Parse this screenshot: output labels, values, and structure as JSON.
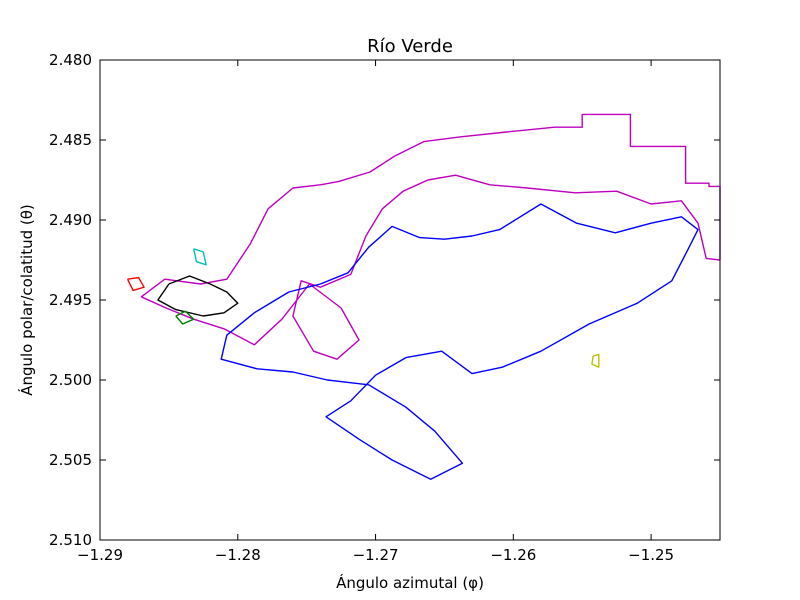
{
  "chart_data": {
    "type": "line",
    "title": "Río Verde",
    "xlabel": "Ángulo azimutal (φ)",
    "ylabel": "Ángulo polar/colatitud (θ)",
    "xlim": [
      -1.29,
      -1.245
    ],
    "ylim": [
      2.51,
      2.48
    ],
    "y_inverted": true,
    "grid": false,
    "x_ticks": [
      -1.29,
      -1.28,
      -1.27,
      -1.26,
      -1.25
    ],
    "x_tick_labels": [
      "−1.29",
      "−1.28",
      "−1.27",
      "−1.26",
      "−1.25"
    ],
    "y_ticks": [
      2.48,
      2.485,
      2.49,
      2.495,
      2.5,
      2.505,
      2.51
    ],
    "y_tick_labels": [
      "2.480",
      "2.485",
      "2.490",
      "2.495",
      "2.500",
      "2.505",
      "2.510"
    ],
    "series": [
      {
        "color": "#bf00bf",
        "points": [
          [
            -1.2727,
            2.4876
          ],
          [
            -1.2704,
            2.487
          ],
          [
            -1.2686,
            2.486
          ],
          [
            -1.2665,
            2.4851
          ],
          [
            -1.2638,
            2.4848
          ],
          [
            -1.2605,
            2.4845
          ],
          [
            -1.257,
            2.4842
          ],
          [
            -1.255,
            2.4842
          ],
          [
            -1.255,
            2.4834
          ],
          [
            -1.2515,
            2.4834
          ],
          [
            -1.2515,
            2.4854
          ],
          [
            -1.2475,
            2.4854
          ],
          [
            -1.2475,
            2.4877
          ],
          [
            -1.2458,
            2.4877
          ],
          [
            -1.2458,
            2.4879
          ],
          [
            -1.245,
            2.4879
          ],
          [
            -1.245,
            2.4925
          ],
          [
            -1.246,
            2.4924
          ],
          [
            -1.2466,
            2.4902
          ],
          [
            -1.2478,
            2.4888
          ],
          [
            -1.25,
            2.489
          ],
          [
            -1.2525,
            2.4882
          ],
          [
            -1.2555,
            2.4883
          ],
          [
            -1.259,
            2.488
          ],
          [
            -1.2617,
            2.4878
          ],
          [
            -1.2642,
            2.4872
          ],
          [
            -1.2662,
            2.4875
          ],
          [
            -1.268,
            2.4882
          ],
          [
            -1.2695,
            2.4893
          ],
          [
            -1.2707,
            2.491
          ],
          [
            -1.2718,
            2.4934
          ],
          [
            -1.274,
            2.4942
          ],
          [
            -1.2754,
            2.4938
          ],
          [
            -1.276,
            2.496
          ],
          [
            -1.2745,
            2.4982
          ],
          [
            -1.2728,
            2.4987
          ],
          [
            -1.2712,
            2.4975
          ],
          [
            -1.2725,
            2.4955
          ],
          [
            -1.2748,
            2.494
          ],
          [
            -1.2768,
            2.4962
          ],
          [
            -1.2788,
            2.4978
          ],
          [
            -1.281,
            2.4968
          ],
          [
            -1.2832,
            2.4962
          ],
          [
            -1.2852,
            2.4955
          ],
          [
            -1.287,
            2.4948
          ],
          [
            -1.2853,
            2.4937
          ],
          [
            -1.2827,
            2.494
          ],
          [
            -1.2808,
            2.4937
          ],
          [
            -1.2791,
            2.4915
          ],
          [
            -1.2778,
            2.4893
          ],
          [
            -1.276,
            2.488
          ],
          [
            -1.274,
            2.4878
          ],
          [
            -1.2727,
            2.4876
          ]
        ]
      },
      {
        "color": "#0000ff",
        "points": [
          [
            -1.263,
            2.491
          ],
          [
            -1.261,
            2.4906
          ],
          [
            -1.258,
            2.489
          ],
          [
            -1.2554,
            2.4902
          ],
          [
            -1.2526,
            2.4908
          ],
          [
            -1.25,
            2.4902
          ],
          [
            -1.2478,
            2.4898
          ],
          [
            -1.2466,
            2.4906
          ],
          [
            -1.2473,
            2.4918
          ],
          [
            -1.2485,
            2.4938
          ],
          [
            -1.251,
            2.4952
          ],
          [
            -1.2545,
            2.4965
          ],
          [
            -1.258,
            2.4982
          ],
          [
            -1.2608,
            2.4992
          ],
          [
            -1.263,
            2.4996
          ],
          [
            -1.2652,
            2.4982
          ],
          [
            -1.2678,
            2.4986
          ],
          [
            -1.27,
            2.4997
          ],
          [
            -1.2718,
            2.5013
          ],
          [
            -1.2736,
            2.5023
          ],
          [
            -1.2712,
            2.5037
          ],
          [
            -1.2688,
            2.505
          ],
          [
            -1.266,
            2.5062
          ],
          [
            -1.2637,
            2.5052
          ],
          [
            -1.2657,
            2.5032
          ],
          [
            -1.2678,
            2.5017
          ],
          [
            -1.2705,
            2.5003
          ],
          [
            -1.2735,
            2.5
          ],
          [
            -1.276,
            2.4995
          ],
          [
            -1.2786,
            2.4993
          ],
          [
            -1.2812,
            2.4987
          ],
          [
            -1.2808,
            2.4972
          ],
          [
            -1.2788,
            2.4958
          ],
          [
            -1.2763,
            2.4945
          ],
          [
            -1.274,
            2.494
          ],
          [
            -1.272,
            2.4933
          ],
          [
            -1.2705,
            2.4917
          ],
          [
            -1.2688,
            2.4904
          ],
          [
            -1.2668,
            2.4911
          ],
          [
            -1.265,
            2.4912
          ],
          [
            -1.263,
            2.491
          ]
        ]
      },
      {
        "color": "#000000",
        "points": [
          [
            -1.285,
            2.494
          ],
          [
            -1.2835,
            2.4935
          ],
          [
            -1.282,
            2.494
          ],
          [
            -1.2808,
            2.4945
          ],
          [
            -1.28,
            2.4952
          ],
          [
            -1.281,
            2.4958
          ],
          [
            -1.2825,
            2.496
          ],
          [
            -1.2845,
            2.4956
          ],
          [
            -1.2858,
            2.495
          ],
          [
            -1.285,
            2.494
          ]
        ]
      },
      {
        "color": "#ff0000",
        "points": [
          [
            -1.288,
            2.4937
          ],
          [
            -1.2872,
            2.4936
          ],
          [
            -1.2868,
            2.4942
          ],
          [
            -1.2876,
            2.4944
          ],
          [
            -1.288,
            2.4937
          ]
        ]
      },
      {
        "color": "#00bfbf",
        "points": [
          [
            -1.2832,
            2.4918
          ],
          [
            -1.2825,
            2.492
          ],
          [
            -1.2823,
            2.4928
          ],
          [
            -1.283,
            2.4926
          ],
          [
            -1.2832,
            2.4918
          ]
        ]
      },
      {
        "color": "#008000",
        "points": [
          [
            -1.2845,
            2.496
          ],
          [
            -1.2838,
            2.4957
          ],
          [
            -1.2832,
            2.4962
          ],
          [
            -1.284,
            2.4965
          ],
          [
            -1.2845,
            2.496
          ]
        ]
      },
      {
        "color": "#bfbf00",
        "points": [
          [
            -1.2542,
            2.4985
          ],
          [
            -1.2538,
            2.4984
          ],
          [
            -1.2538,
            2.4992
          ],
          [
            -1.2543,
            2.499
          ],
          [
            -1.2542,
            2.4985
          ]
        ]
      }
    ]
  }
}
